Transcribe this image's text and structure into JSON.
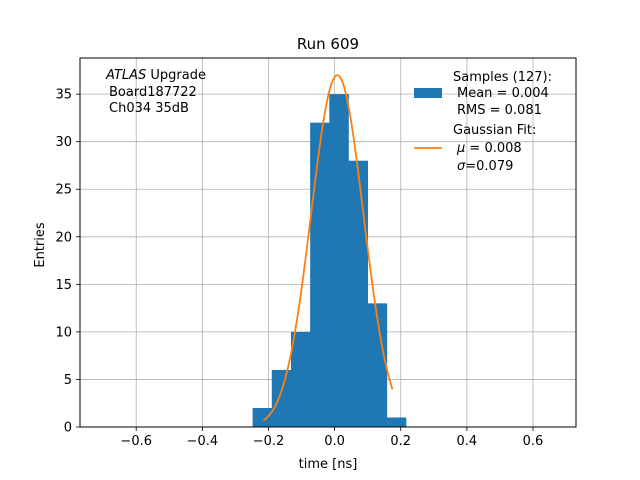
{
  "chart_data": {
    "type": "bar",
    "title": "Run 609",
    "xlabel": "time [ns]",
    "ylabel": "Entries",
    "xlim": [
      -0.77,
      0.73
    ],
    "ylim": [
      0,
      38.8
    ],
    "grid": true,
    "x_ticks": [
      -0.6,
      -0.4,
      -0.2,
      0.0,
      0.2,
      0.4,
      0.6
    ],
    "x_tick_labels": [
      "−0.6",
      "−0.4",
      "−0.2",
      "0.0",
      "0.2",
      "0.4",
      "0.6"
    ],
    "y_ticks": [
      0,
      5,
      10,
      15,
      20,
      25,
      30,
      35
    ],
    "y_tick_labels": [
      "0",
      "5",
      "10",
      "15",
      "20",
      "25",
      "30",
      "35"
    ],
    "annotation": {
      "line1_italic": "ATLAS",
      "line1_rest": " Upgrade",
      "line2": "Board187722",
      "line3": "Ch034 35dB"
    },
    "histogram": {
      "name": "Samples (127):",
      "color": "#1f77b4",
      "bin_width": 0.058,
      "bin_left_edges": [
        -0.248,
        -0.19,
        -0.132,
        -0.074,
        -0.016,
        0.042,
        0.1,
        0.158
      ],
      "counts": [
        2,
        6,
        10,
        32,
        35,
        28,
        13,
        1
      ]
    },
    "fit": {
      "name": "Gaussian Fit:",
      "color": "#ff7f0e",
      "mu": 0.008,
      "sigma": 0.079,
      "amplitude": 37.0,
      "x_range": [
        -0.215,
        0.175
      ]
    },
    "legend": {
      "placement": "top-right",
      "samples_title": "Samples (127):",
      "samples_mean": "Mean = 0.004",
      "samples_rms": "RMS = 0.081",
      "fit_title": "Gaussian Fit:",
      "fit_mu_symbol": "μ",
      "fit_mu_rest": " = 0.008",
      "fit_sigma_symbol": "σ",
      "fit_sigma_rest": "=0.079"
    }
  }
}
